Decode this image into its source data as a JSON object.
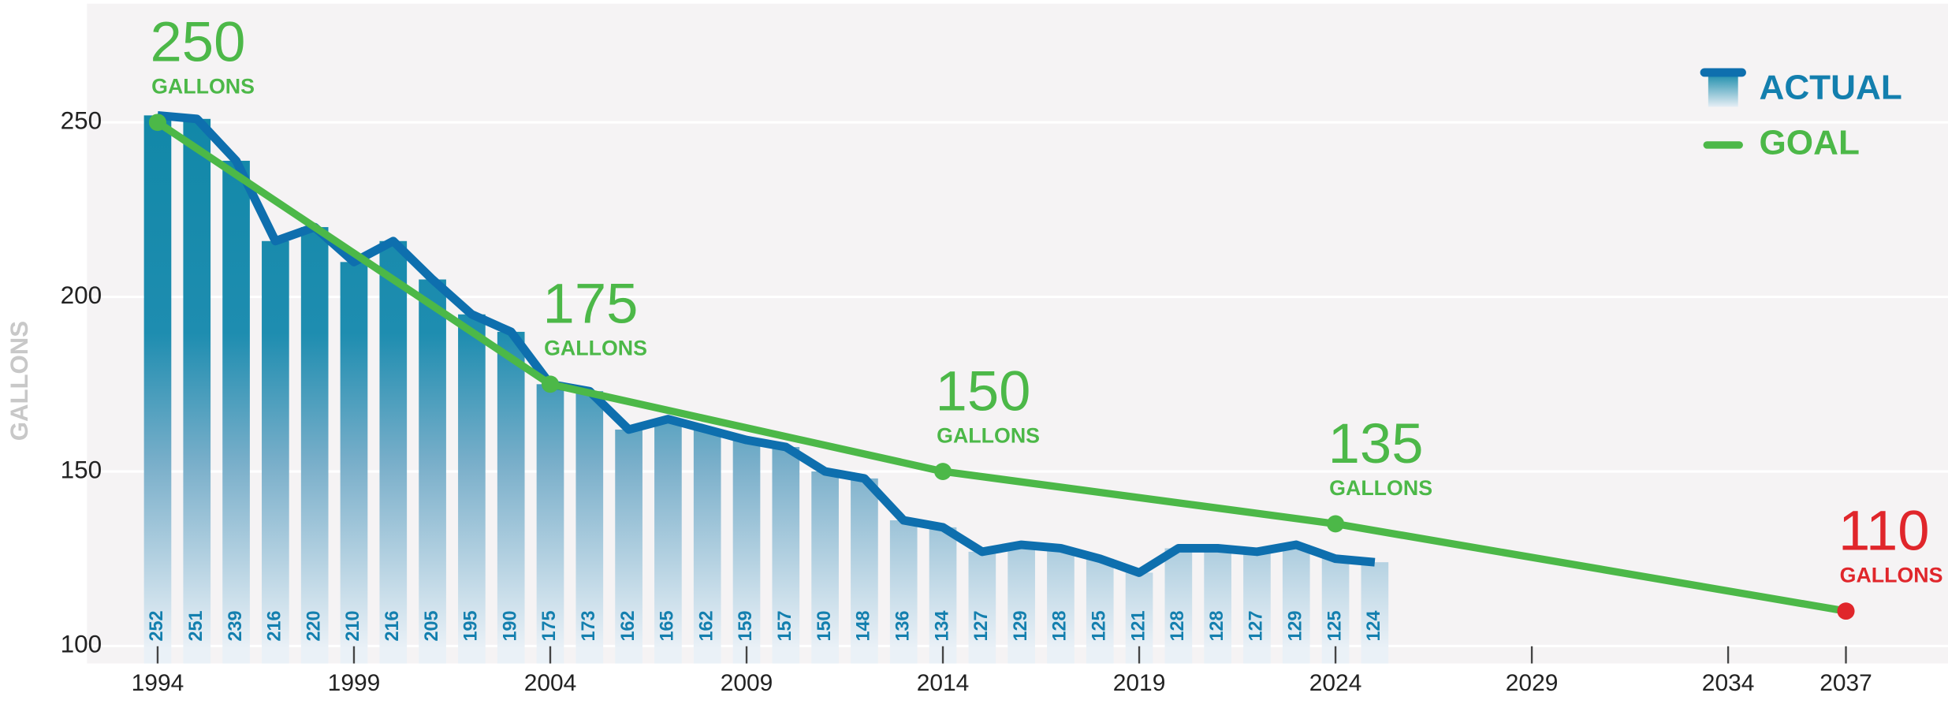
{
  "chart_data": {
    "type": "bar_line",
    "y_label": "GALLONS",
    "xlim": [
      1992.2,
      2039.6
    ],
    "ylim": [
      95,
      284
    ],
    "xticks": [
      1994,
      1999,
      2004,
      2009,
      2014,
      2019,
      2024,
      2029,
      2034,
      2037
    ],
    "yticks": [
      100,
      150,
      200,
      250
    ],
    "grid": true,
    "legend": "top-right",
    "series": [
      {
        "name": "ACTUAL",
        "type": "bar",
        "color": "#137fae",
        "line_color": "#0e6fae",
        "x": [
          1994,
          1995,
          1996,
          1997,
          1998,
          1999,
          2000,
          2001,
          2002,
          2003,
          2004,
          2005,
          2006,
          2007,
          2008,
          2009,
          2010,
          2011,
          2012,
          2013,
          2014,
          2015,
          2016,
          2017,
          2018,
          2019,
          2020,
          2021,
          2022,
          2023,
          2024,
          2025
        ],
        "values": [
          252,
          251,
          239,
          216,
          220,
          210,
          216,
          205,
          195,
          190,
          175,
          173,
          162,
          165,
          162,
          159,
          157,
          150,
          148,
          136,
          134,
          127,
          129,
          128,
          125,
          121,
          128,
          128,
          127,
          129,
          125,
          124
        ]
      },
      {
        "name": "GOAL",
        "type": "line",
        "color": "#4cb848",
        "x": [
          1994,
          2004,
          2014,
          2024,
          2037
        ],
        "values": [
          250,
          175,
          150,
          135,
          110
        ],
        "point_colors": [
          "#4cb848",
          "#4cb848",
          "#4cb848",
          "#4cb848",
          "#e0262b"
        ],
        "label_unit": "GALLONS"
      }
    ]
  }
}
